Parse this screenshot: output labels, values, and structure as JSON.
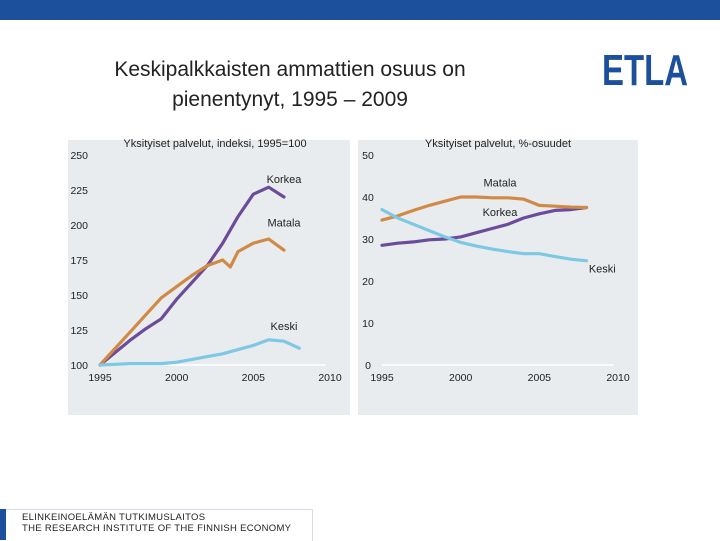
{
  "title_line1": "Keskipalkkaisten ammattien osuus on",
  "title_line2": "pienentynyt, 1995 – 2009",
  "logo_text": "ETLA",
  "footer_line1": "ELINKEINOELÄMÄN TUTKIMUSLAITOS",
  "footer_line2": "THE RESEARCH INSTITUTE OF THE FINNISH ECONOMY",
  "colors": {
    "korkea": "#6b4c9a",
    "matala": "#d08a45",
    "keski": "#7ec8e3",
    "panel": "#e9ecef",
    "brand": "#1c4f9c"
  },
  "chart_data": [
    {
      "type": "line",
      "title": "Yksityiset palvelut, indeksi, 1995=100",
      "xlim": [
        1995,
        2010
      ],
      "ylim": [
        100,
        250
      ],
      "xticks": [
        "1995",
        "2000",
        "2005",
        "2010"
      ],
      "yticks": [
        "100",
        "125",
        "150",
        "175",
        "200",
        "225",
        "250"
      ],
      "x": [
        1995,
        1996,
        1997,
        1998,
        1999,
        2000,
        2001,
        2002,
        2003,
        2004,
        2005,
        2006,
        2007,
        2008,
        2009
      ],
      "series": [
        {
          "name": "Korkea",
          "key": "korkea",
          "values": [
            100,
            109,
            118,
            126,
            133,
            147,
            159,
            171,
            187,
            206,
            222,
            227,
            220
          ],
          "x": [
            1995,
            1996,
            1997,
            1998,
            1999,
            2000,
            2001,
            2002,
            2003,
            2004,
            2005,
            2006,
            2007
          ]
        },
        {
          "name": "Matala",
          "key": "matala",
          "values": [
            100,
            112,
            124,
            136,
            148,
            156,
            164,
            171,
            175,
            170,
            181,
            187,
            190,
            182
          ],
          "x": [
            1995,
            1996,
            1997,
            1998,
            1999,
            2000,
            2001,
            2002,
            2003,
            2003.5,
            2004,
            2005,
            2006,
            2007
          ]
        },
        {
          "name": "Keski",
          "key": "keski",
          "values": [
            100,
            100.5,
            101,
            101,
            101,
            102,
            104,
            106,
            108,
            111,
            114,
            118,
            117,
            112
          ],
          "x": [
            1995,
            1996,
            1997,
            1998,
            1999,
            2000,
            2001,
            2002,
            2003,
            2004,
            2005,
            2006,
            2007,
            2008
          ]
        }
      ],
      "labels": [
        {
          "text": "Korkea",
          "x": 2007,
          "y": 230
        },
        {
          "text": "Matala",
          "x": 2007,
          "y": 199
        },
        {
          "text": "Keski",
          "x": 2007,
          "y": 125
        }
      ]
    },
    {
      "type": "line",
      "title": "Yksityiset palvelut, %-osuudet",
      "xlim": [
        1995,
        2010
      ],
      "ylim": [
        0,
        50
      ],
      "xticks": [
        "1995",
        "2000",
        "2005",
        "2010"
      ],
      "yticks": [
        "0",
        "10",
        "20",
        "30",
        "40",
        "50"
      ],
      "series": [
        {
          "name": "Korkea",
          "key": "korkea",
          "x": [
            1995,
            1996,
            1997,
            1998,
            1999,
            2000,
            2001,
            2002,
            2003,
            2004,
            2005,
            2006,
            2007,
            2008
          ],
          "values": [
            28.5,
            29,
            29.3,
            29.8,
            30,
            30.5,
            31.5,
            32.5,
            33.5,
            35,
            36,
            36.8,
            37,
            37.5
          ]
        },
        {
          "name": "Matala",
          "key": "matala",
          "x": [
            1995,
            1996,
            1997,
            1998,
            1999,
            2000,
            2001,
            2002,
            2003,
            2004,
            2005,
            2006,
            2007,
            2008
          ],
          "values": [
            34.5,
            35.5,
            36.8,
            38,
            39,
            40,
            40,
            39.8,
            39.8,
            39.5,
            38,
            37.8,
            37.6,
            37.5
          ]
        },
        {
          "name": "Keski",
          "key": "keski",
          "x": [
            1995,
            1996,
            1997,
            1998,
            1999,
            2000,
            2001,
            2002,
            2003,
            2004,
            2005,
            2006,
            2007,
            2008
          ],
          "values": [
            37,
            35,
            33.5,
            32,
            30.5,
            29.2,
            28.3,
            27.6,
            27,
            26.5,
            26.5,
            25.8,
            25.2,
            24.8
          ]
        }
      ],
      "labels": [
        {
          "text": "Matala",
          "x": 2002.5,
          "y": 42.5
        },
        {
          "text": "Korkea",
          "x": 2002.5,
          "y": 35.5
        },
        {
          "text": "Keski",
          "x": 2009,
          "y": 22
        }
      ]
    }
  ]
}
